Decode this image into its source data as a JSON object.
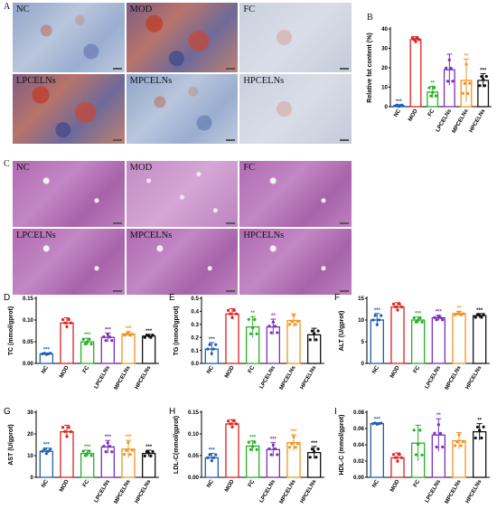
{
  "panel_letters": [
    "A",
    "B",
    "C",
    "D",
    "E",
    "F",
    "G",
    "H",
    "I"
  ],
  "sig": "***",
  "panel_a": {
    "tiles": [
      {
        "label": "NC",
        "style": "oro"
      },
      {
        "label": "MOD",
        "style": "oro-heavy"
      },
      {
        "label": "FC",
        "style": "oro-light"
      },
      {
        "label": "LPCELNs",
        "style": "oro-heavy"
      },
      {
        "label": "MPCELNs",
        "style": "oro"
      },
      {
        "label": "HPCELNs",
        "style": "oro-light"
      }
    ]
  },
  "panel_c": {
    "tiles": [
      {
        "label": "NC",
        "style": "he"
      },
      {
        "label": "MOD",
        "style": "he-mod"
      },
      {
        "label": "FC",
        "style": "he"
      },
      {
        "label": "LPCELNs",
        "style": "he"
      },
      {
        "label": "MPCELNs",
        "style": "he"
      },
      {
        "label": "HPCELNs",
        "style": "he"
      }
    ]
  },
  "groups": [
    "NC",
    "MOD",
    "FC",
    "LPCELNs",
    "MPCELNs",
    "HPCELNs"
  ],
  "group_colors": [
    "#1f5fb0",
    "#e02020",
    "#27b02a",
    "#7b2fbf",
    "#f29422",
    "#111111"
  ],
  "chart_data": [
    {
      "panel": "B",
      "type": "bar",
      "ylabel": "Relative fat content (%)",
      "ylim": [
        0,
        40
      ],
      "yticks": [
        0,
        10,
        20,
        30,
        40
      ],
      "values": [
        0.5,
        34.5,
        7.5,
        19,
        13.5,
        13.5
      ],
      "errors": [
        0.5,
        1.5,
        3,
        8,
        11,
        3.5
      ],
      "sig": [
        "***",
        "",
        "**",
        "",
        "**",
        "***"
      ]
    },
    {
      "panel": "D",
      "type": "bar",
      "ylabel": "TC (mmol/gprot)",
      "ylim": [
        0,
        0.15
      ],
      "yticks": [
        0.0,
        0.05,
        0.1,
        0.15
      ],
      "values": [
        0.022,
        0.093,
        0.05,
        0.06,
        0.068,
        0.063
      ],
      "errors": [
        0.002,
        0.012,
        0.008,
        0.01,
        0.005,
        0.004
      ],
      "sig": [
        "***",
        "",
        "***",
        "***",
        "***",
        "***"
      ]
    },
    {
      "panel": "E",
      "type": "bar",
      "ylabel": "TG (mmol/gprot)",
      "ylim": [
        0,
        0.5
      ],
      "yticks": [
        0.0,
        0.1,
        0.2,
        0.3,
        0.4,
        0.5
      ],
      "values": [
        0.11,
        0.38,
        0.28,
        0.28,
        0.33,
        0.22
      ],
      "errors": [
        0.05,
        0.04,
        0.08,
        0.06,
        0.05,
        0.05
      ],
      "sig": [
        "***",
        "",
        "**",
        "**",
        "",
        ""
      ]
    },
    {
      "panel": "F",
      "type": "bar",
      "ylabel": "ALT (U/gprot)",
      "ylim": [
        0,
        15
      ],
      "yticks": [
        0,
        5,
        10,
        15
      ],
      "values": [
        10,
        13,
        10,
        10.5,
        11.5,
        11
      ],
      "errors": [
        1.5,
        1.0,
        0.7,
        0.6,
        0.5,
        0.5
      ],
      "sig": [
        "***",
        "",
        "***",
        "***",
        "**",
        "***"
      ]
    },
    {
      "panel": "G",
      "type": "bar",
      "ylabel": "AST (U/gprot)",
      "ylim": [
        0,
        30
      ],
      "yticks": [
        0,
        10,
        20,
        30
      ],
      "values": [
        12,
        21,
        11,
        14,
        13,
        11
      ],
      "errors": [
        1.5,
        3,
        1.5,
        3,
        4,
        1.5
      ],
      "sig": [
        "***",
        "",
        "***",
        "***",
        "***",
        "***"
      ]
    },
    {
      "panel": "H",
      "type": "bar",
      "ylabel": "LDL-C(mmol/gprot)",
      "ylim": [
        0,
        0.15
      ],
      "yticks": [
        0.0,
        0.05,
        0.1,
        0.15
      ],
      "values": [
        0.045,
        0.123,
        0.072,
        0.064,
        0.08,
        0.057
      ],
      "errors": [
        0.01,
        0.01,
        0.012,
        0.016,
        0.018,
        0.014
      ],
      "sig": [
        "***",
        "",
        "***",
        "***",
        "***",
        "***"
      ]
    },
    {
      "panel": "I",
      "type": "bar",
      "ylabel": "HDL-C (mmol/gprot)",
      "ylim": [
        0,
        0.08
      ],
      "yticks": [
        0.0,
        0.02,
        0.04,
        0.06,
        0.08
      ],
      "values": [
        0.066,
        0.024,
        0.042,
        0.052,
        0.045,
        0.056
      ],
      "errors": [
        0.001,
        0.006,
        0.022,
        0.02,
        0.01,
        0.01
      ],
      "sig": [
        "***",
        "",
        "",
        "**",
        "",
        "**"
      ]
    }
  ]
}
